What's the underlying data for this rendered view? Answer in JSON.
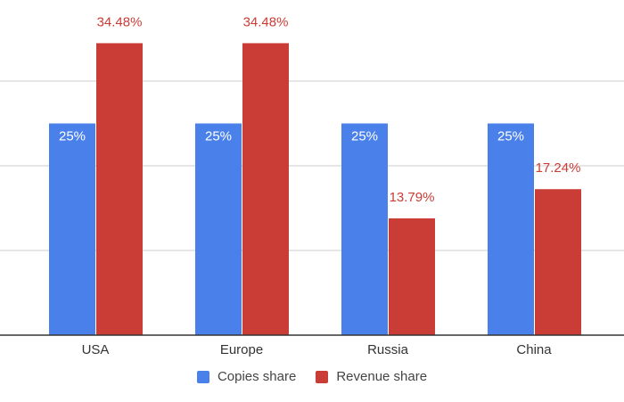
{
  "colors": {
    "copies": "#4a80ea",
    "revenue": "#c93d36",
    "copies_label": "#ffffff",
    "revenue_label": "#c93d36",
    "grid": "#cccccc",
    "axis": "#333333",
    "tick_text": "#333333"
  },
  "chart_data": {
    "type": "bar",
    "categories": [
      "USA",
      "Europe",
      "Russia",
      "China"
    ],
    "series": [
      {
        "name": "Copies share",
        "values": [
          25,
          25,
          25,
          25
        ],
        "labels": [
          "25%",
          "25%",
          "25%",
          "25%"
        ],
        "label_position": "inside-top"
      },
      {
        "name": "Revenue share",
        "values": [
          34.48,
          34.48,
          13.79,
          17.24
        ],
        "labels": [
          "34.48%",
          "34.48%",
          "13.79%",
          "17.24%"
        ],
        "label_position": "above"
      }
    ],
    "ylim": [
      0,
      40
    ],
    "y_gridlines": [
      10,
      20,
      30
    ],
    "title": "",
    "xlabel": "",
    "ylabel": "",
    "grid": true,
    "legend": "bottom-center"
  }
}
